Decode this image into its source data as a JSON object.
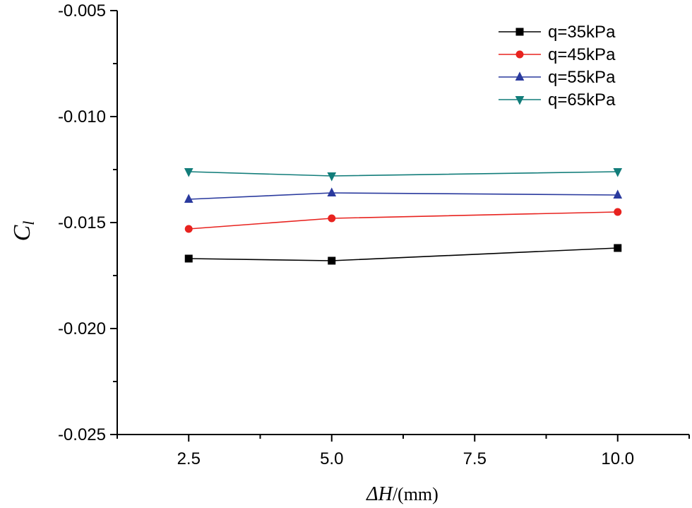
{
  "chart_data": {
    "type": "line",
    "title": "",
    "xlabel": {
      "symbol": "ΔH",
      "unit": "/(mm)"
    },
    "ylabel": {
      "main": "C",
      "sub": "l"
    },
    "xlim": [
      1.25,
      11.25
    ],
    "ylim": [
      -0.025,
      -0.005
    ],
    "xticks": [
      2.5,
      5.0,
      7.5,
      10.0
    ],
    "xtick_labels": [
      "2.5",
      "5.0",
      "7.5",
      "10.0"
    ],
    "yticks": [
      -0.005,
      -0.01,
      -0.015,
      -0.02,
      -0.025
    ],
    "ytick_labels": [
      "-0.005",
      "-0.010",
      "-0.015",
      "-0.020",
      "-0.025"
    ],
    "grid": false,
    "legend_position": "top-right",
    "x": [
      2.5,
      5.0,
      10.0
    ],
    "series": [
      {
        "name": "q=35kPa",
        "values": [
          -0.0167,
          -0.0168,
          -0.0162
        ],
        "color": "#000000",
        "marker": "square"
      },
      {
        "name": "q=45kPa",
        "values": [
          -0.0153,
          -0.0148,
          -0.0145
        ],
        "color": "#e8231f",
        "marker": "circle"
      },
      {
        "name": "q=55kPa",
        "values": [
          -0.0139,
          -0.0136,
          -0.0137
        ],
        "color": "#2a3a9e",
        "marker": "triangle-up"
      },
      {
        "name": "q=65kPa",
        "values": [
          -0.0126,
          -0.0128,
          -0.0126
        ],
        "color": "#127d7a",
        "marker": "triangle-down"
      }
    ]
  }
}
